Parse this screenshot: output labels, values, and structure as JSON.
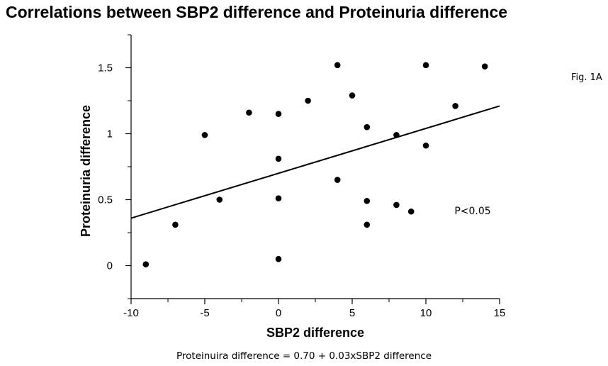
{
  "title": "Correlations between SBP2 difference and Proteinuria difference",
  "figure_label": "Fig. 1A",
  "equation_caption": "Proteinuira difference = 0.70 + 0.03xSBP2 difference",
  "chart_data": {
    "type": "scatter",
    "title": "Correlations between SBP2 difference and Proteinuria difference",
    "xlabel": "SBP2 difference",
    "ylabel": "Proteinuria difference",
    "xlim": [
      -10,
      15
    ],
    "ylim": [
      -0.25,
      1.75
    ],
    "x_ticks": [
      -10,
      -5,
      0,
      5,
      10,
      15
    ],
    "x_tick_labels": [
      "-10",
      "-5",
      "0",
      "5",
      "10",
      "15"
    ],
    "y_ticks": [
      0,
      0.5,
      1,
      1.5
    ],
    "y_tick_labels": [
      "0",
      "0.5",
      "1",
      "1.5"
    ],
    "grid": false,
    "annotation": "P<0.05",
    "regression": {
      "intercept": 0.7,
      "slope": 0.034
    },
    "points": [
      {
        "x": -9,
        "y": 0.01
      },
      {
        "x": -7,
        "y": 0.31
      },
      {
        "x": -5,
        "y": 0.99
      },
      {
        "x": -4,
        "y": 0.5
      },
      {
        "x": -2,
        "y": 1.16
      },
      {
        "x": 0,
        "y": 1.15
      },
      {
        "x": 0,
        "y": 0.81
      },
      {
        "x": 0,
        "y": 0.51
      },
      {
        "x": 0,
        "y": 0.05
      },
      {
        "x": 2,
        "y": 1.25
      },
      {
        "x": 4,
        "y": 1.52
      },
      {
        "x": 4,
        "y": 0.65
      },
      {
        "x": 5,
        "y": 1.29
      },
      {
        "x": 6,
        "y": 1.05
      },
      {
        "x": 6,
        "y": 0.49
      },
      {
        "x": 6,
        "y": 0.31
      },
      {
        "x": 8,
        "y": 0.99
      },
      {
        "x": 8,
        "y": 0.46
      },
      {
        "x": 9,
        "y": 0.41
      },
      {
        "x": 10,
        "y": 1.52
      },
      {
        "x": 10,
        "y": 0.91
      },
      {
        "x": 12,
        "y": 1.21
      },
      {
        "x": 14,
        "y": 1.51
      }
    ]
  }
}
